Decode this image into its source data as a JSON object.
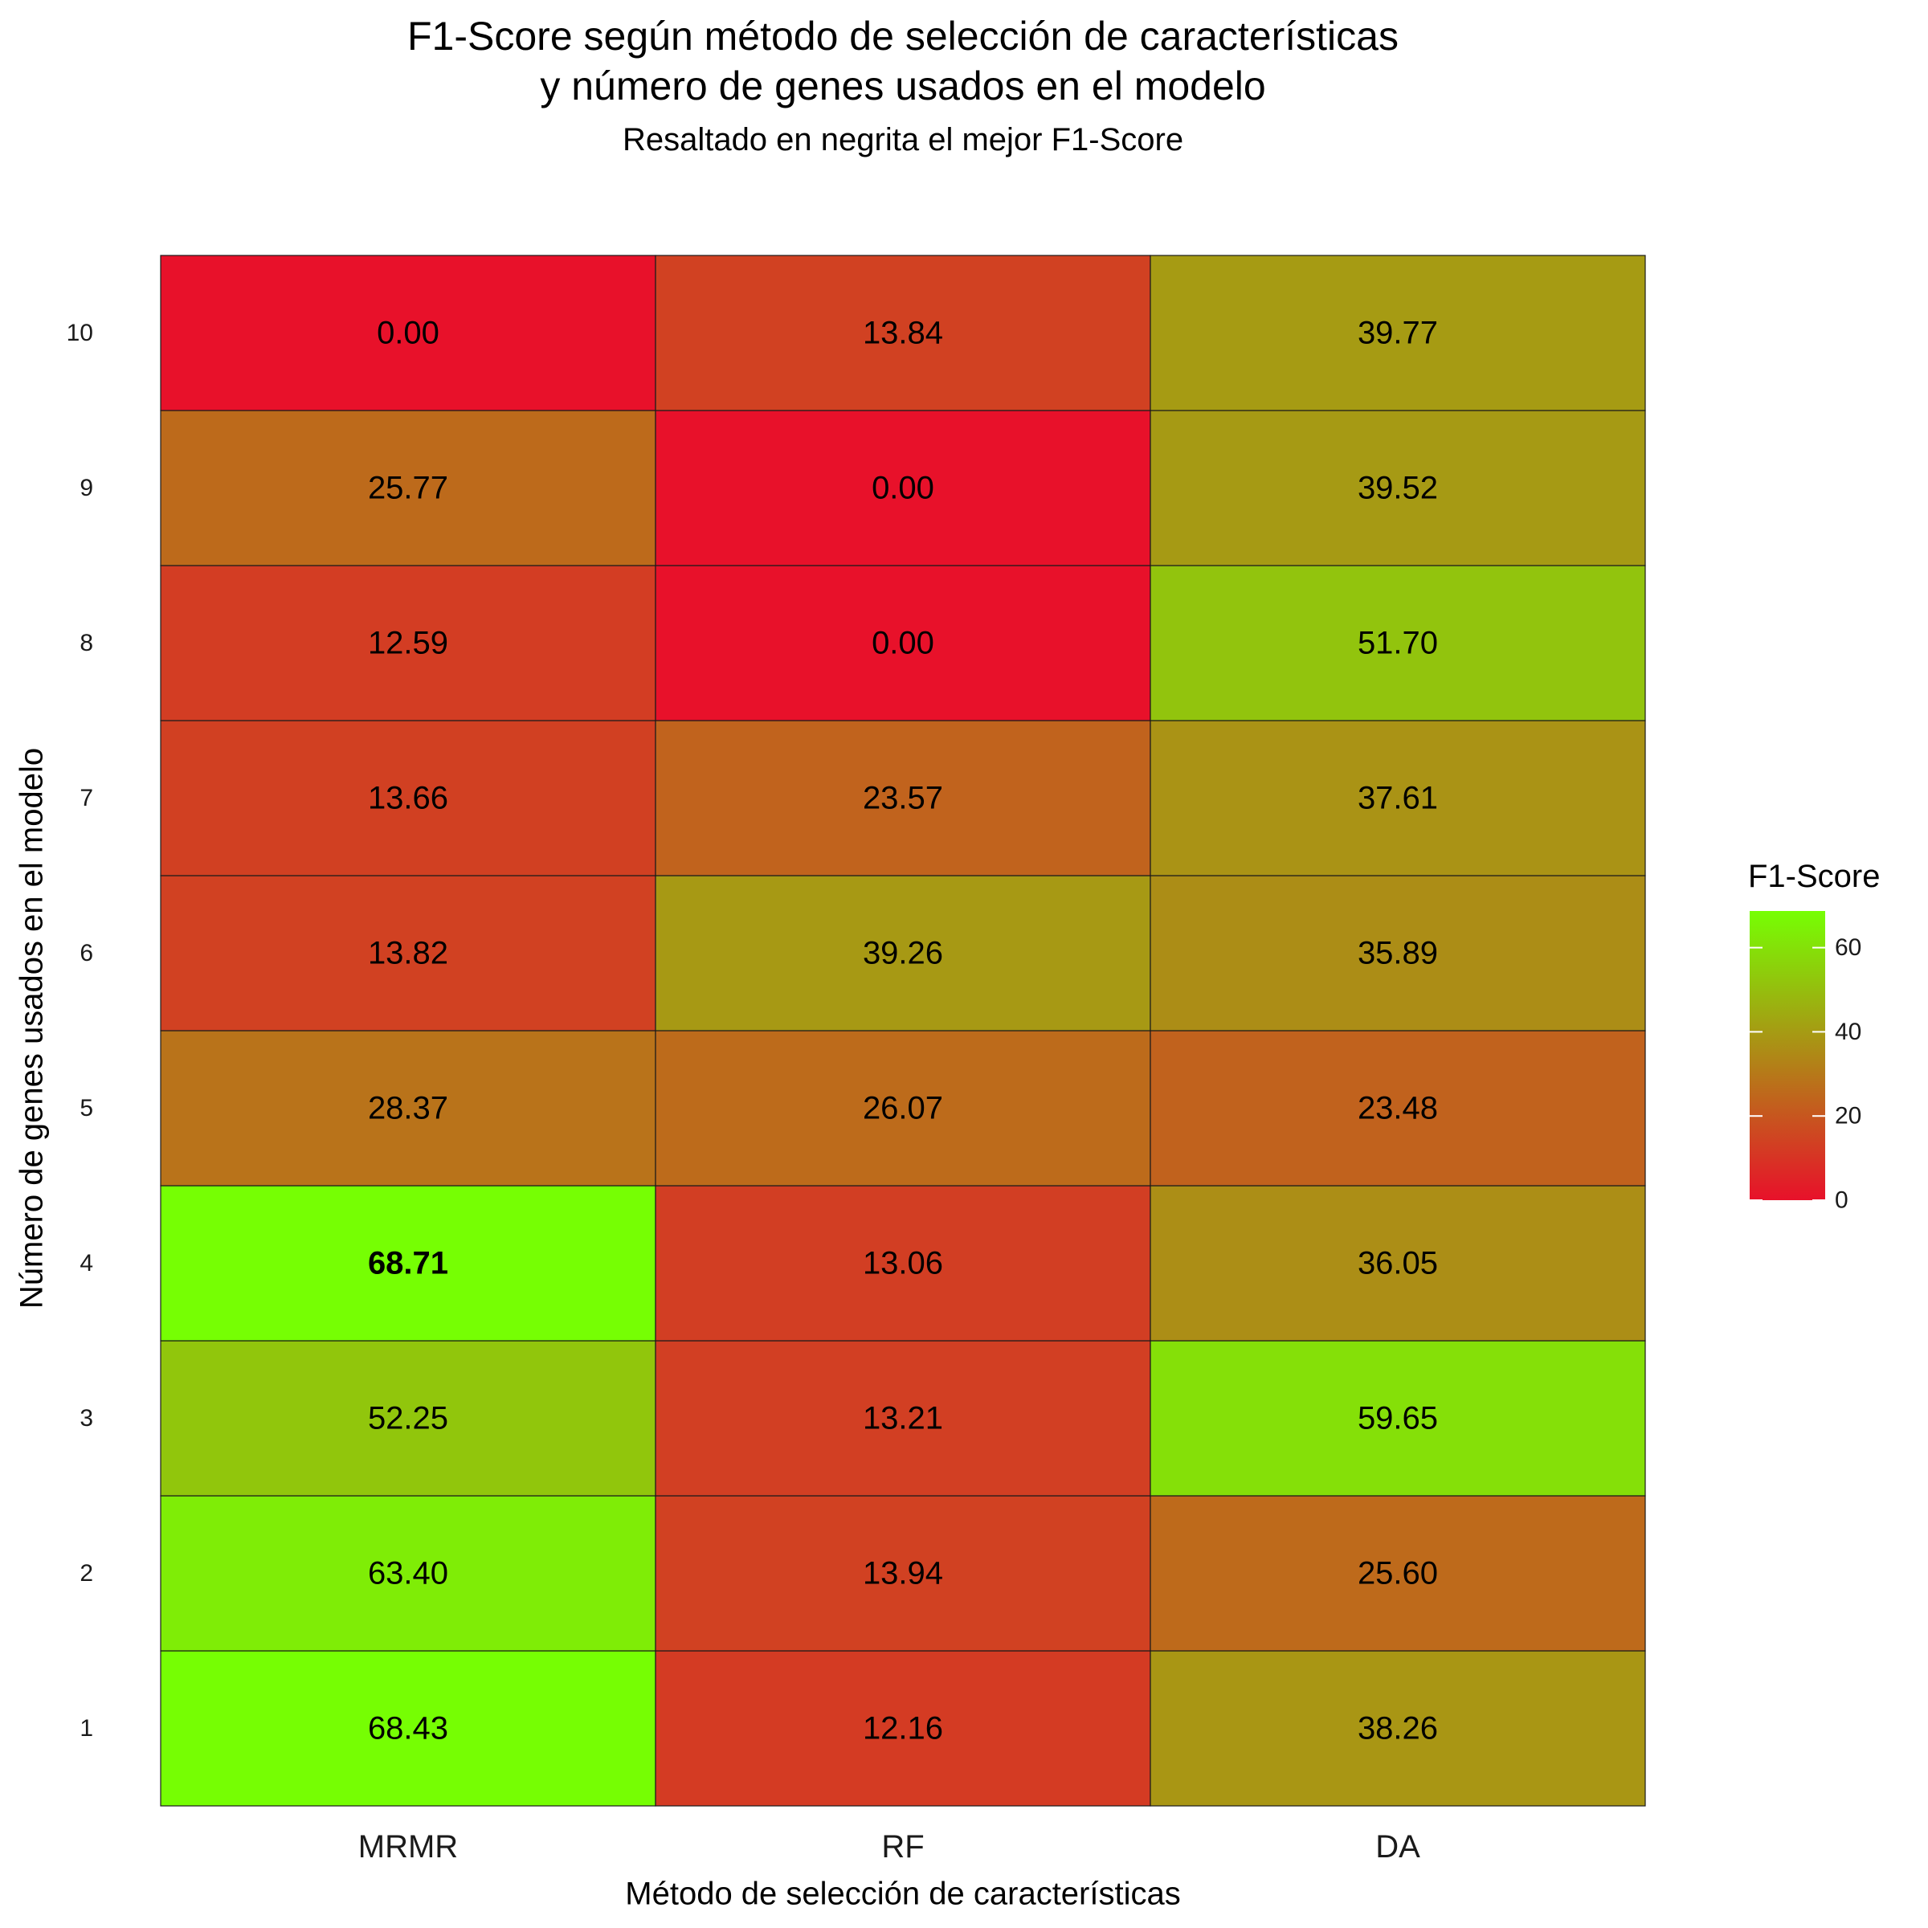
{
  "chart_data": {
    "type": "heatmap",
    "title": [
      "F1-Score según método de selección de características",
      "y número de genes usados en el modelo"
    ],
    "subtitle": "Resaltado en negrita el mejor F1-Score",
    "xlabel": "Método de selección de características",
    "ylabel": "Número de genes usados en el modelo",
    "x_categories": [
      "MRMR",
      "RF",
      "DA"
    ],
    "y_categories": [
      "1",
      "2",
      "3",
      "4",
      "5",
      "6",
      "7",
      "8",
      "9",
      "10"
    ],
    "values": [
      [
        68.43,
        12.16,
        38.26
      ],
      [
        63.4,
        13.94,
        25.6
      ],
      [
        52.25,
        13.21,
        59.65
      ],
      [
        68.71,
        13.06,
        36.05
      ],
      [
        28.37,
        26.07,
        23.48
      ],
      [
        13.82,
        39.26,
        35.89
      ],
      [
        13.66,
        23.57,
        37.61
      ],
      [
        12.59,
        0.0,
        51.7
      ],
      [
        25.77,
        0.0,
        39.52
      ],
      [
        0.0,
        13.84,
        39.77
      ]
    ],
    "labels": [
      [
        "68.43",
        "12.16",
        "38.26"
      ],
      [
        "63.40",
        "13.94",
        "25.60"
      ],
      [
        "52.25",
        "13.21",
        "59.65"
      ],
      [
        "68.71",
        "13.06",
        "36.05"
      ],
      [
        "28.37",
        "26.07",
        "23.48"
      ],
      [
        "13.82",
        "39.26",
        "35.89"
      ],
      [
        "13.66",
        "23.57",
        "37.61"
      ],
      [
        "12.59",
        "0.00",
        "51.70"
      ],
      [
        "25.77",
        "0.00",
        "39.52"
      ],
      [
        "0.00",
        "13.84",
        "39.77"
      ]
    ],
    "highlight": {
      "row": "4",
      "col": "MRMR",
      "value": 68.71,
      "style": "bold"
    },
    "color_scale": {
      "low": "#E8112A",
      "high": "#76FF03",
      "min": 0,
      "max": 68.71
    },
    "legend": {
      "title": "F1-Score",
      "ticks": [
        0,
        20,
        40,
        60
      ],
      "tick_labels": [
        "0",
        "20",
        "40",
        "60"
      ],
      "placement": "right"
    },
    "grid": false
  }
}
